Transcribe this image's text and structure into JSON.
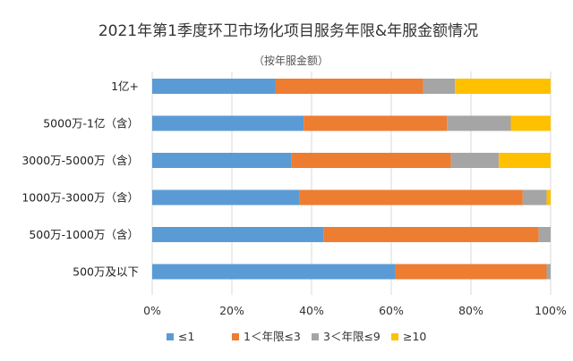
{
  "chart_data": {
    "type": "bar",
    "orientation": "horizontal",
    "stacked": true,
    "percent": true,
    "title": "2021年第1季度环卫市场化项目服务年限&年服金额情况",
    "subtitle": "（按年服金额）",
    "categories": [
      "1亿+",
      "5000万-1亿（含）",
      "3000万-5000万（含）",
      "1000万-3000万（含）",
      "500万-1000万（含）",
      "500万及以下"
    ],
    "series": [
      {
        "name": "≤1",
        "color": "#5b9bd5",
        "values": [
          31,
          38,
          35,
          37,
          43,
          61
        ]
      },
      {
        "name": "1＜年限≤3",
        "color": "#ed7d31",
        "values": [
          37,
          36,
          40,
          56,
          54,
          38
        ]
      },
      {
        "name": "3＜年限≤9",
        "color": "#a5a5a5",
        "values": [
          8,
          16,
          12,
          6,
          3,
          1
        ]
      },
      {
        "name": "≥10",
        "color": "#ffc000",
        "values": [
          24,
          10,
          13,
          1,
          0,
          0
        ]
      }
    ],
    "xlim": [
      0,
      100
    ],
    "xticks": [
      "0%",
      "20%",
      "40%",
      "60%",
      "80%",
      "100%"
    ],
    "grid": true,
    "legend": "bottom"
  }
}
